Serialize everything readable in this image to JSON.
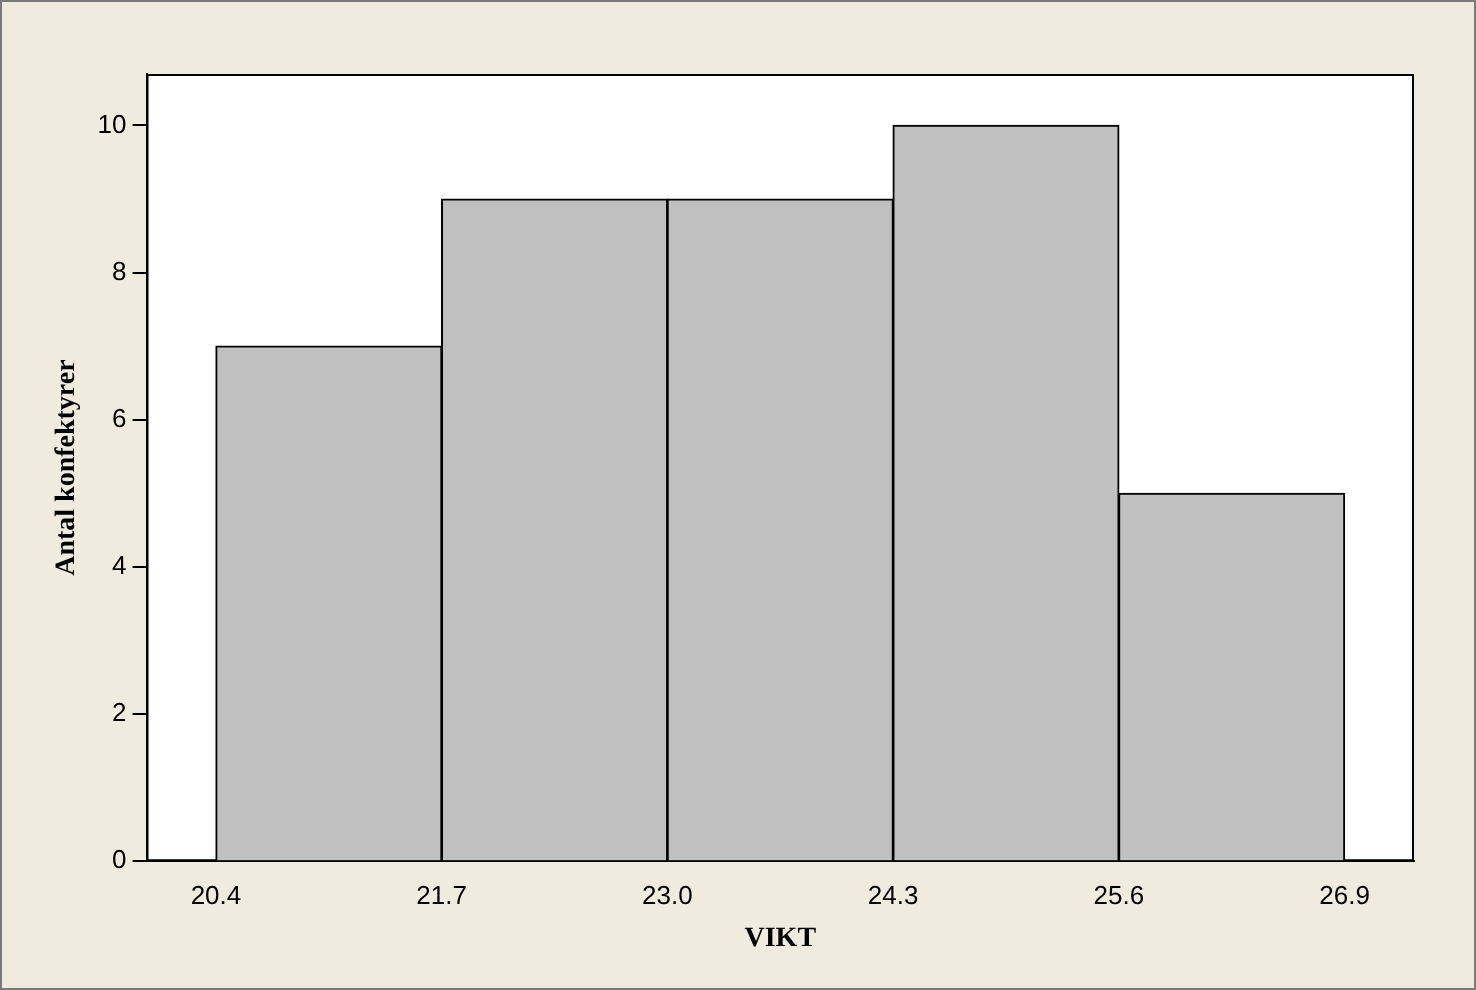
{
  "chart_data": {
    "type": "histogram",
    "xlabel": "VIKT",
    "ylabel": "Antal konfektyrer",
    "bins": [
      20.4,
      21.7,
      23.0,
      24.3,
      25.6,
      26.9
    ],
    "values": [
      7,
      9,
      9,
      10,
      5
    ],
    "color": "#c0c0c0",
    "xlim": [
      20.0,
      27.3
    ],
    "xticks": [
      20.4,
      21.7,
      {
        "value": 23.0,
        "label": "23.0"
      },
      24.3,
      25.6,
      26.9
    ],
    "ylim": [
      0,
      10.7
    ],
    "yticks": [
      0,
      2,
      4,
      6,
      8,
      10
    ],
    "grid": false,
    "legend": false
  }
}
